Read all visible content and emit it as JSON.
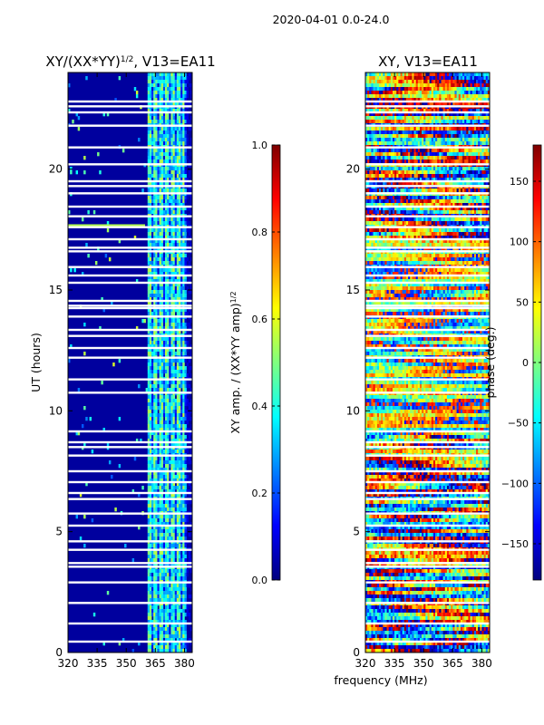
{
  "suptitle": "2020-04-01 0.0-24.0",
  "xlabel": "frequency (MHz)",
  "colormap": [
    "#00007f",
    "#0000ff",
    "#007fff",
    "#00ffff",
    "#7fff7f",
    "#ffff00",
    "#ff7f00",
    "#ff0000",
    "#7f0000"
  ],
  "chart_data": [
    {
      "type": "heatmap",
      "title_main": "XY/(XX*YY)",
      "title_sup": "1/2",
      "title_rest": ", V13=EA11",
      "xlabel": "frequency (MHz)",
      "ylabel": "UT (hours)",
      "xlim": [
        320,
        384
      ],
      "ylim": [
        0,
        24
      ],
      "xticks": [
        "320",
        "335",
        "350",
        "365",
        "380"
      ],
      "xtick_values": [
        320,
        335,
        350,
        365,
        380
      ],
      "yticks": [
        "0",
        "5",
        "10",
        "15",
        "20"
      ],
      "ytick_values": [
        0,
        5,
        10,
        15,
        20
      ],
      "colorbar": {
        "label_main": "XY amp. / (XX*YY amp)",
        "label_sup": "1/2",
        "range": [
          0.0,
          1.0
        ],
        "ticks": [
          "0.0",
          "0.2",
          "0.4",
          "0.6",
          "0.8",
          "1.0"
        ],
        "tick_values": [
          0.0,
          0.2,
          0.4,
          0.6,
          0.8,
          1.0
        ]
      },
      "description": "Mostly near 0 (dark blue) below 361 MHz; 0.2-0.6 amplitude in channels ~361-380 MHz"
    },
    {
      "type": "heatmap",
      "title": "XY, V13=EA11",
      "xlabel": "frequency (MHz)",
      "ylabel": "",
      "xlim": [
        320,
        384
      ],
      "ylim": [
        0,
        24
      ],
      "xticks": [
        "320",
        "335",
        "350",
        "365",
        "380"
      ],
      "xtick_values": [
        320,
        335,
        350,
        365,
        380
      ],
      "yticks": [
        "0",
        "5",
        "10",
        "15",
        "20"
      ],
      "ytick_values": [
        0,
        5,
        10,
        15,
        20
      ],
      "colorbar": {
        "label": "phase (deg.)",
        "range": [
          -180,
          180
        ],
        "ticks": [
          "−150",
          "−100",
          "−50",
          "0",
          "50",
          "100",
          "150"
        ],
        "tick_values": [
          -150,
          -100,
          -50,
          0,
          50,
          100,
          150
        ]
      },
      "description": "Phase varying across full -180 to 180 deg range"
    }
  ],
  "flagged_rows_ut": [
    0.45,
    1.2,
    2.05,
    2.9,
    3.55,
    3.7,
    4.25,
    4.6,
    5.25,
    5.75,
    6.35,
    6.6,
    7.05,
    7.5,
    8.15,
    8.5,
    8.7,
    9.15,
    10.75,
    11.3,
    12.2,
    12.6,
    13.1,
    13.35,
    13.9,
    14.25,
    14.35,
    14.55,
    15.3,
    15.6,
    15.95,
    16.6,
    16.75,
    17.1,
    17.6,
    18.05,
    18.45,
    19.0,
    19.3,
    19.5,
    20.2,
    20.9,
    21.8,
    22.35,
    22.6,
    22.8
  ]
}
